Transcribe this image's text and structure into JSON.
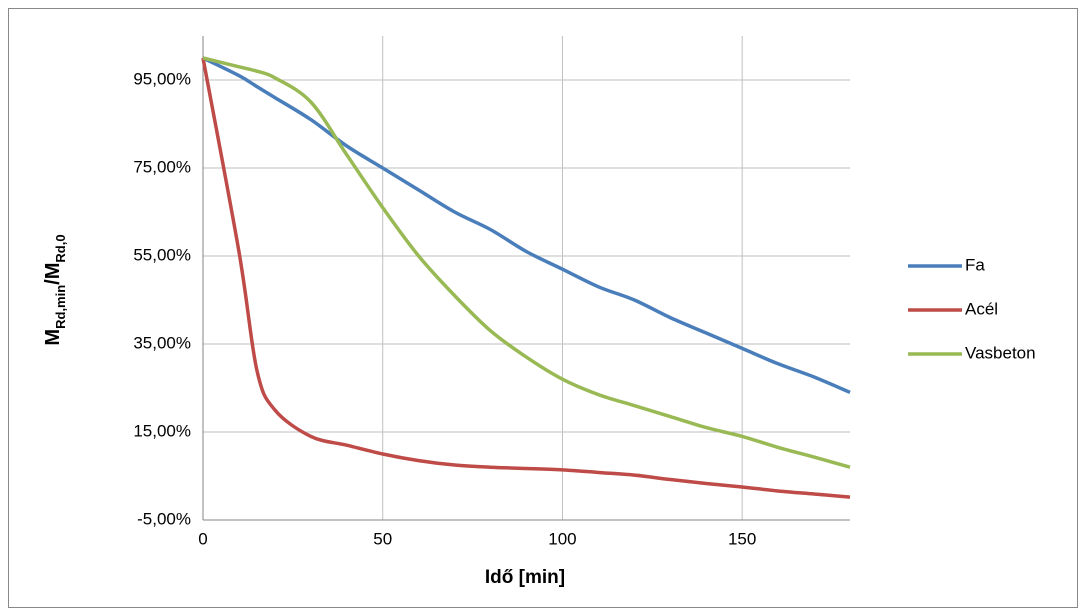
{
  "chart_data": {
    "type": "line",
    "ylabel_parts": [
      {
        "text": "M"
      },
      {
        "text": "Rd,min",
        "sub": true
      },
      {
        "text": "/M"
      },
      {
        "text": "Rd,0",
        "sub": true
      }
    ],
    "xlabel": "Idő [min]",
    "x": [
      0,
      10,
      15,
      20,
      30,
      40,
      50,
      60,
      70,
      80,
      90,
      100,
      110,
      120,
      130,
      140,
      150,
      160,
      170,
      180
    ],
    "series": [
      {
        "name": "Fa",
        "color": "#4a7ebb",
        "values": [
          100,
          96,
          93.5,
          91,
          86,
          80,
          75,
          70,
          65,
          61,
          56,
          52,
          48,
          45,
          41,
          37.5,
          34,
          30.5,
          27.5,
          24
        ]
      },
      {
        "name": "Acél",
        "color": "#be4b48",
        "values": [
          100,
          56,
          29,
          20,
          14,
          12,
          10,
          8.5,
          7.5,
          7,
          6.7,
          6.4,
          5.8,
          5.2,
          4.2,
          3.3,
          2.5,
          1.6,
          0.9,
          0.2
        ]
      },
      {
        "name": "Vasbeton",
        "color": "#98b954",
        "values": [
          100,
          98,
          97,
          95.5,
          90,
          78,
          66,
          55,
          46,
          38,
          32,
          27,
          23.5,
          21,
          18.5,
          16,
          14,
          11.5,
          9.3,
          7
        ]
      }
    ],
    "xlim": [
      0,
      180
    ],
    "xticks": [
      0,
      50,
      100,
      150
    ],
    "ylim": [
      -5,
      105
    ],
    "yticks": [
      {
        "value": -5,
        "label": "-5,00%"
      },
      {
        "value": 15,
        "label": "15,00%"
      },
      {
        "value": 35,
        "label": "35,00%"
      },
      {
        "value": 55,
        "label": "55,00%"
      },
      {
        "value": 75,
        "label": "75,00%"
      },
      {
        "value": 95,
        "label": "95,00%"
      }
    ],
    "grid": true,
    "legend": "right"
  }
}
